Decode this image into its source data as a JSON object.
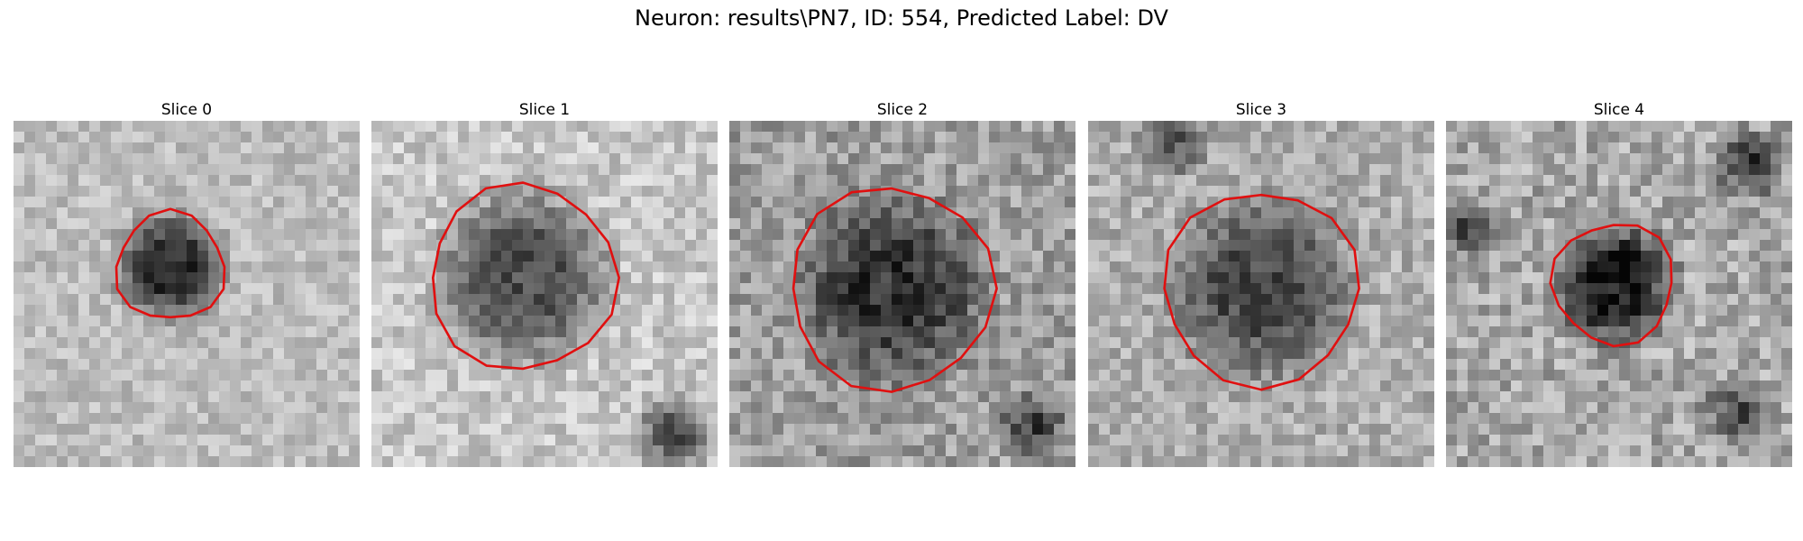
{
  "figure": {
    "title": "Neuron: results\\PN7, ID: 554, Predicted Label: DV"
  },
  "slices": [
    {
      "title": "Slice 0"
    },
    {
      "title": "Slice 1"
    },
    {
      "title": "Slice 2"
    },
    {
      "title": "Slice 3"
    },
    {
      "title": "Slice 4"
    }
  ],
  "colors": {
    "contour": "#e01010",
    "background": "#ffffff"
  }
}
